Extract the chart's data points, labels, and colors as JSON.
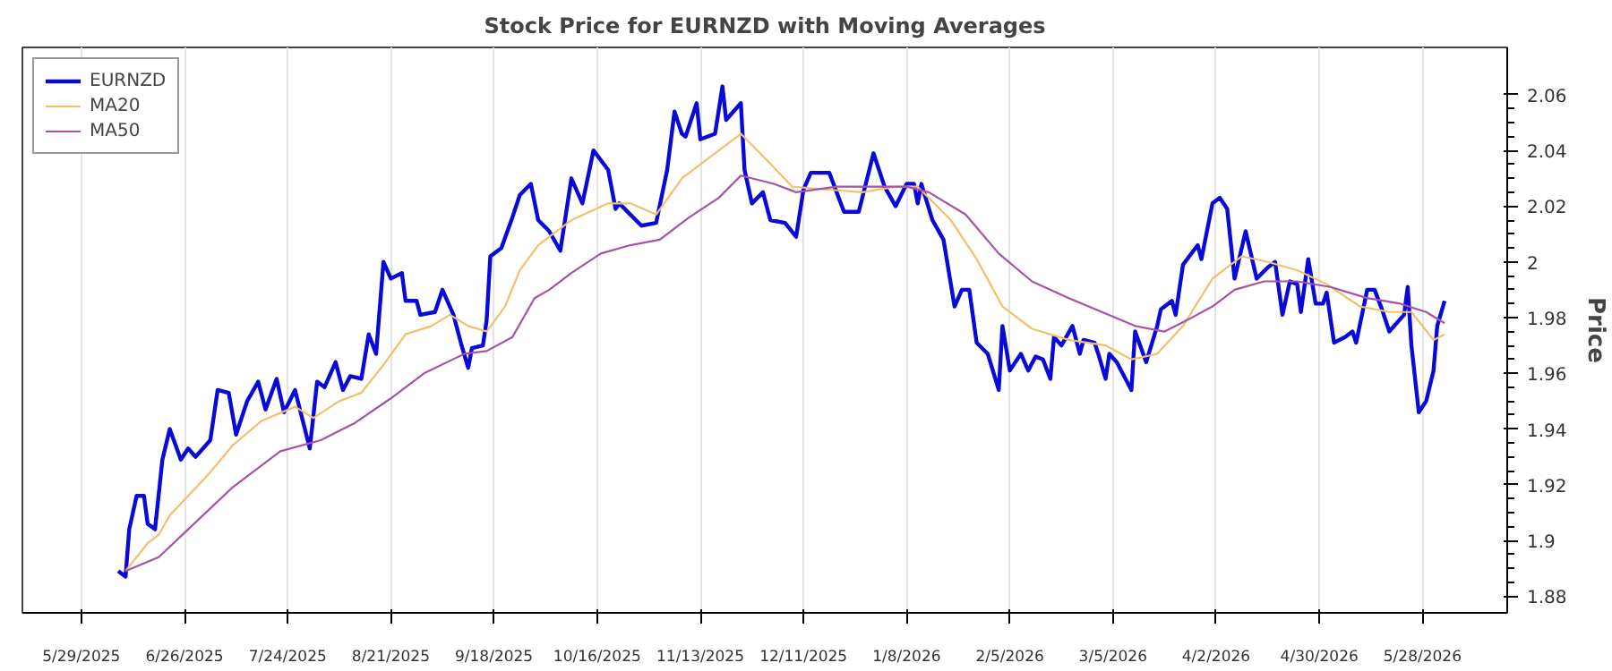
{
  "chart_data": {
    "type": "line",
    "title": "Stock Price for EURNZD with Moving Averages",
    "ylabel": "Price",
    "xlim": [
      "2025-05-13",
      "2026-06-20"
    ],
    "xticks": [
      {
        "value": "2025-05-29",
        "label": "5/29/2025"
      },
      {
        "value": "2025-06-26",
        "label": "6/26/2025"
      },
      {
        "value": "2025-07-24",
        "label": "7/24/2025"
      },
      {
        "value": "2025-08-21",
        "label": "8/21/2025"
      },
      {
        "value": "2025-09-18",
        "label": "9/18/2025"
      },
      {
        "value": "2025-10-16",
        "label": "10/16/2025"
      },
      {
        "value": "2025-11-13",
        "label": "11/13/2025"
      },
      {
        "value": "2025-12-11",
        "label": "12/11/2025"
      },
      {
        "value": "2026-01-08",
        "label": "1/8/2026"
      },
      {
        "value": "2026-02-05",
        "label": "2/5/2026"
      },
      {
        "value": "2026-03-05",
        "label": "3/5/2026"
      },
      {
        "value": "2026-04-02",
        "label": "4/2/2026"
      },
      {
        "value": "2026-04-30",
        "label": "4/30/2026"
      },
      {
        "value": "2026-05-28",
        "label": "5/28/2026"
      }
    ],
    "ylim": [
      1.874,
      2.077
    ],
    "yticks": [
      1.88,
      1.9,
      1.92,
      1.94,
      1.96,
      1.98,
      2,
      2.02,
      2.04,
      2.06
    ],
    "grid": "x",
    "legend": "top left",
    "line_style": "solid",
    "marker": "none",
    "series": [
      {
        "name": "EURNZD",
        "color": "#0a0ad8",
        "x": [
          "2025-06-08",
          "2025-06-10",
          "2025-06-11",
          "2025-06-13",
          "2025-06-15",
          "2025-06-16",
          "2025-06-18",
          "2025-06-20",
          "2025-06-22",
          "2025-06-25",
          "2025-06-27",
          "2025-06-29",
          "2025-07-03",
          "2025-07-05",
          "2025-07-08",
          "2025-07-10",
          "2025-07-13",
          "2025-07-16",
          "2025-07-18",
          "2025-07-21",
          "2025-07-23",
          "2025-07-26",
          "2025-07-30",
          "2025-08-01",
          "2025-08-03",
          "2025-08-06",
          "2025-08-08",
          "2025-08-10",
          "2025-08-13",
          "2025-08-15",
          "2025-08-17",
          "2025-08-19",
          "2025-08-21",
          "2025-08-24",
          "2025-08-25",
          "2025-08-28",
          "2025-08-29",
          "2025-09-02",
          "2025-09-04",
          "2025-09-07",
          "2025-09-09",
          "2025-09-11",
          "2025-09-12",
          "2025-09-15",
          "2025-09-16",
          "2025-09-17",
          "2025-09-20",
          "2025-09-23",
          "2025-09-25",
          "2025-09-28",
          "2025-09-30",
          "2025-10-03",
          "2025-10-06",
          "2025-10-09",
          "2025-10-12",
          "2025-10-15",
          "2025-10-19",
          "2025-10-21",
          "2025-10-22",
          "2025-10-28",
          "2025-11-01",
          "2025-11-04",
          "2025-11-06",
          "2025-11-08",
          "2025-11-09",
          "2025-11-12",
          "2025-11-13",
          "2025-11-17",
          "2025-11-19",
          "2025-11-20",
          "2025-11-24",
          "2025-11-25",
          "2025-11-27",
          "2025-11-30",
          "2025-12-02",
          "2025-12-06",
          "2025-12-09",
          "2025-12-11",
          "2025-12-13",
          "2025-12-18",
          "2025-12-22",
          "2025-12-26",
          "2025-12-30",
          "2026-01-02",
          "2026-01-05",
          "2026-01-08",
          "2026-01-10",
          "2026-01-11",
          "2026-01-12",
          "2026-01-15",
          "2026-01-18",
          "2026-01-21",
          "2026-01-23",
          "2026-01-25",
          "2026-01-27",
          "2026-01-30",
          "2026-02-02",
          "2026-02-03",
          "2026-02-05",
          "2026-02-08",
          "2026-02-10",
          "2026-02-12",
          "2026-02-14",
          "2026-02-16",
          "2026-02-17",
          "2026-02-19",
          "2026-02-22",
          "2026-02-24",
          "2026-02-25",
          "2026-02-28",
          "2026-03-01",
          "2026-03-03",
          "2026-03-04",
          "2026-03-06",
          "2026-03-10",
          "2026-03-11",
          "2026-03-14",
          "2026-03-17",
          "2026-03-18",
          "2026-03-21",
          "2026-03-22",
          "2026-03-24",
          "2026-03-28",
          "2026-03-29",
          "2026-04-01",
          "2026-04-03",
          "2026-04-05",
          "2026-04-07",
          "2026-04-10",
          "2026-04-13",
          "2026-04-16",
          "2026-04-18",
          "2026-04-20",
          "2026-04-22",
          "2026-04-24",
          "2026-04-25",
          "2026-04-27",
          "2026-04-29",
          "2026-05-01",
          "2026-05-02",
          "2026-05-04",
          "2026-05-07",
          "2026-05-09",
          "2026-05-10",
          "2026-05-13",
          "2026-05-15",
          "2026-05-17",
          "2026-05-19",
          "2026-05-23",
          "2026-05-24",
          "2026-05-25",
          "2026-05-27",
          "2026-05-29",
          "2026-05-31",
          "2026-06-01",
          "2026-06-03"
        ],
        "values": [
          1.889,
          1.887,
          1.904,
          1.916,
          1.916,
          1.906,
          1.904,
          1.929,
          1.94,
          1.929,
          1.933,
          1.93,
          1.936,
          1.954,
          1.953,
          1.938,
          1.95,
          1.957,
          1.947,
          1.958,
          1.946,
          1.954,
          1.933,
          1.957,
          1.955,
          1.964,
          1.954,
          1.959,
          1.958,
          1.974,
          1.967,
          2.0,
          1.994,
          1.996,
          1.986,
          1.986,
          1.981,
          1.982,
          1.99,
          1.981,
          1.971,
          1.962,
          1.969,
          1.97,
          1.979,
          2.002,
          2.005,
          2.016,
          2.024,
          2.028,
          2.015,
          2.011,
          2.004,
          2.03,
          2.021,
          2.04,
          2.033,
          2.019,
          2.021,
          2.013,
          2.014,
          2.033,
          2.054,
          2.046,
          2.045,
          2.057,
          2.044,
          2.046,
          2.063,
          2.051,
          2.057,
          2.033,
          2.021,
          2.025,
          2.015,
          2.014,
          2.009,
          2.026,
          2.032,
          2.032,
          2.018,
          2.018,
          2.039,
          2.027,
          2.02,
          2.028,
          2.028,
          2.021,
          2.028,
          2.015,
          2.008,
          1.984,
          1.99,
          1.99,
          1.971,
          1.967,
          1.954,
          1.977,
          1.961,
          1.967,
          1.961,
          1.966,
          1.965,
          1.958,
          1.973,
          1.97,
          1.977,
          1.967,
          1.972,
          1.971,
          1.967,
          1.958,
          1.967,
          1.964,
          1.954,
          1.975,
          1.964,
          1.977,
          1.983,
          1.986,
          1.981,
          1.999,
          2.006,
          2.001,
          2.021,
          2.023,
          2.019,
          1.994,
          2.011,
          1.994,
          1.998,
          2.0,
          1.981,
          1.993,
          1.992,
          1.982,
          2.001,
          1.985,
          1.985,
          1.989,
          1.971,
          1.973,
          1.975,
          1.971,
          1.99,
          1.99,
          1.983,
          1.975,
          1.981,
          1.991,
          1.97,
          1.946,
          1.95,
          1.961,
          1.977,
          1.986
        ]
      },
      {
        "name": "MA20",
        "color": "#f2bf6a",
        "x": [
          "2025-06-10",
          "2025-06-16",
          "2025-06-19",
          "2025-06-22",
          "2025-06-27",
          "2025-07-02",
          "2025-07-09",
          "2025-07-17",
          "2025-07-26",
          "2025-07-31",
          "2025-08-07",
          "2025-08-13",
          "2025-08-19",
          "2025-08-25",
          "2025-09-01",
          "2025-09-06",
          "2025-09-11",
          "2025-09-16",
          "2025-09-21",
          "2025-09-25",
          "2025-09-30",
          "2025-10-03",
          "2025-10-09",
          "2025-10-19",
          "2025-10-25",
          "2025-11-01",
          "2025-11-08",
          "2025-11-14",
          "2025-11-24",
          "2025-11-30",
          "2025-12-08",
          "2025-12-17",
          "2025-12-27",
          "2026-01-05",
          "2026-01-11",
          "2026-01-20",
          "2026-01-27",
          "2026-02-03",
          "2026-02-11",
          "2026-02-21",
          "2026-03-03",
          "2026-03-10",
          "2026-03-17",
          "2026-03-24",
          "2026-04-01",
          "2026-04-09",
          "2026-04-16",
          "2026-04-24",
          "2026-05-02",
          "2026-05-11",
          "2026-05-19",
          "2026-05-25",
          "2026-05-31",
          "2026-06-03"
        ],
        "values": [
          1.889,
          1.899,
          1.902,
          1.909,
          1.916,
          1.923,
          1.934,
          1.943,
          1.948,
          1.944,
          1.95,
          1.953,
          1.963,
          1.974,
          1.977,
          1.981,
          1.977,
          1.975,
          1.984,
          1.997,
          2.006,
          2.009,
          2.015,
          2.021,
          2.021,
          2.017,
          2.03,
          2.036,
          2.046,
          2.038,
          2.027,
          2.026,
          2.025,
          2.027,
          2.027,
          2.015,
          2.001,
          1.984,
          1.976,
          1.972,
          1.97,
          1.965,
          1.967,
          1.977,
          1.994,
          2.002,
          2.0,
          1.997,
          1.992,
          1.984,
          1.982,
          1.982,
          1.972,
          1.974
        ]
      },
      {
        "name": "MA50",
        "color": "#a552a8",
        "x": [
          "2025-06-10",
          "2025-06-19",
          "2025-06-27",
          "2025-07-09",
          "2025-07-22",
          "2025-08-02",
          "2025-08-11",
          "2025-08-21",
          "2025-08-30",
          "2025-09-10",
          "2025-09-16",
          "2025-09-23",
          "2025-09-29",
          "2025-10-03",
          "2025-10-09",
          "2025-10-17",
          "2025-10-25",
          "2025-11-02",
          "2025-11-10",
          "2025-11-18",
          "2025-11-24",
          "2025-12-03",
          "2025-12-09",
          "2025-12-20",
          "2025-12-30",
          "2026-01-08",
          "2026-01-14",
          "2026-01-24",
          "2026-02-02",
          "2026-02-11",
          "2026-02-21",
          "2026-03-02",
          "2026-03-11",
          "2026-03-19",
          "2026-03-25",
          "2026-04-01",
          "2026-04-07",
          "2026-04-15",
          "2026-04-24",
          "2026-05-03",
          "2026-05-13",
          "2026-05-22",
          "2026-05-29",
          "2026-06-03"
        ],
        "values": [
          1.889,
          1.894,
          1.904,
          1.919,
          1.932,
          1.936,
          1.942,
          1.951,
          1.96,
          1.967,
          1.968,
          1.973,
          1.987,
          1.99,
          1.996,
          2.003,
          2.006,
          2.008,
          2.016,
          2.023,
          2.031,
          2.028,
          2.025,
          2.027,
          2.027,
          2.027,
          2.025,
          2.017,
          2.003,
          1.993,
          1.987,
          1.982,
          1.977,
          1.975,
          1.979,
          1.984,
          1.99,
          1.993,
          1.993,
          1.991,
          1.987,
          1.985,
          1.982,
          1.978
        ]
      }
    ]
  }
}
